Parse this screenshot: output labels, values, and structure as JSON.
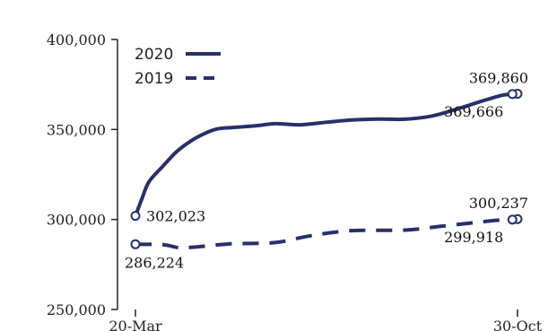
{
  "chart_data": {
    "type": "line",
    "title": "",
    "xlabel": "",
    "ylabel": "",
    "ylim": [
      250000,
      400000
    ],
    "y_ticks": [
      250000,
      300000,
      350000,
      400000
    ],
    "y_tick_labels": [
      "250,000",
      "300,000",
      "350,000",
      "400,000"
    ],
    "x_range": [
      "20-Mar",
      "30-Oct"
    ],
    "x_tick_labels": [
      "20-Mar",
      "30-Oct"
    ],
    "legend_position": "top-left",
    "grid": false,
    "series": [
      {
        "name": "2020",
        "style": "solid",
        "color": "#27306b",
        "points": [
          [
            "20-Mar",
            302023
          ],
          [
            "24-Mar",
            312000
          ],
          [
            "28-Mar",
            321000
          ],
          [
            "05-Apr",
            329500
          ],
          [
            "13-Apr",
            337500
          ],
          [
            "21-Apr",
            343300
          ],
          [
            "29-Apr",
            347500
          ],
          [
            "07-May",
            350300
          ],
          [
            "18-May",
            351200
          ],
          [
            "30-May",
            352100
          ],
          [
            "10-Jun",
            353200
          ],
          [
            "25-Jun",
            352600
          ],
          [
            "10-Jul",
            354000
          ],
          [
            "25-Jul",
            355300
          ],
          [
            "10-Aug",
            355800
          ],
          [
            "25-Aug",
            355700
          ],
          [
            "10-Sep",
            357500
          ],
          [
            "25-Sep",
            361500
          ],
          [
            "10-Oct",
            366000
          ],
          [
            "21-Oct",
            369000
          ],
          [
            "27-Oct",
            369666
          ],
          [
            "30-Oct",
            369860
          ]
        ]
      },
      {
        "name": "2019",
        "style": "dashed",
        "color": "#27306b",
        "points": [
          [
            "20-Mar",
            286224
          ],
          [
            "05-Apr",
            286000
          ],
          [
            "15-Apr",
            284300
          ],
          [
            "25-Apr",
            284800
          ],
          [
            "15-May",
            286500
          ],
          [
            "10-Jun",
            287200
          ],
          [
            "01-Jul",
            291000
          ],
          [
            "25-Jul",
            293800
          ],
          [
            "25-Aug",
            294100
          ],
          [
            "15-Sep",
            296200
          ],
          [
            "05-Oct",
            298300
          ],
          [
            "20-Oct",
            299700
          ],
          [
            "27-Oct",
            299918
          ],
          [
            "30-Oct",
            300237
          ]
        ]
      }
    ],
    "annotations": [
      {
        "series": "2020",
        "x": "20-Mar",
        "y": 302023,
        "text": "302,023",
        "anchor": "right"
      },
      {
        "series": "2020",
        "x": "30-Oct",
        "y": 369860,
        "text": "369,860",
        "anchor": "above-right"
      },
      {
        "series": "2020",
        "x": "27-Oct",
        "y": 369666,
        "text": "369,666",
        "anchor": "below-left"
      },
      {
        "series": "2019",
        "x": "20-Mar",
        "y": 286224,
        "text": "286,224",
        "anchor": "below"
      },
      {
        "series": "2019",
        "x": "30-Oct",
        "y": 300237,
        "text": "300,237",
        "anchor": "above-right"
      },
      {
        "series": "2019",
        "x": "27-Oct",
        "y": 299918,
        "text": "299,918",
        "anchor": "below-left"
      }
    ]
  }
}
